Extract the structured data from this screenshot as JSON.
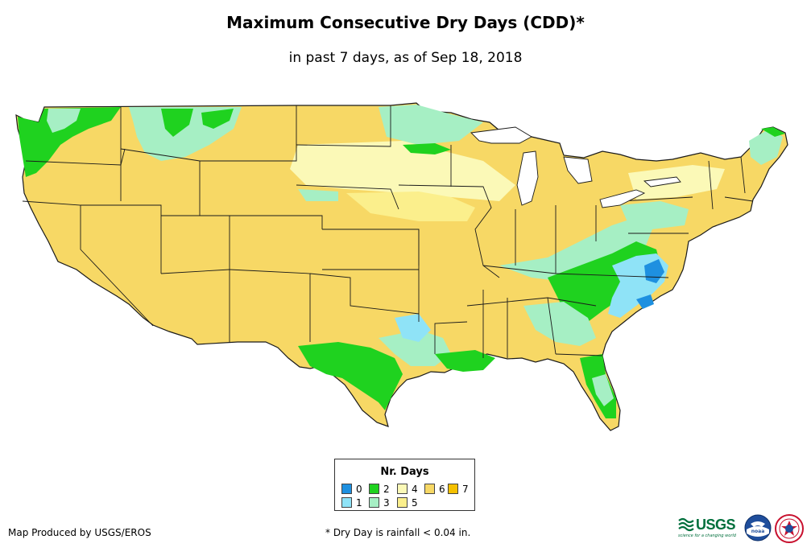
{
  "title": "Maximum Consecutive Dry Days (CDD)*",
  "subtitle": "in past 7 days, as of Sep 18, 2018",
  "legend": {
    "title": "Nr. Days",
    "items": [
      {
        "label": "0",
        "color": "#1e90e0"
      },
      {
        "label": "1",
        "color": "#8fe3f7"
      },
      {
        "label": "2",
        "color": "#1fd21f"
      },
      {
        "label": "3",
        "color": "#a6efc4"
      },
      {
        "label": "4",
        "color": "#fbf9b7"
      },
      {
        "label": "5",
        "color": "#fbef8c"
      },
      {
        "label": "6",
        "color": "#f7d865"
      },
      {
        "label": "7",
        "color": "#f4c000"
      }
    ]
  },
  "footer": {
    "credit": "Map Produced by USGS/EROS",
    "note": "* Dry Day is rainfall < 0.04 in."
  },
  "logos": {
    "usgs": "USGS",
    "usgs_tagline": "science for a changing world",
    "noaa": "noaa"
  },
  "colors": {
    "border": "#1a1a1a",
    "day0": "#1e90e0",
    "day1": "#8fe3f7",
    "day2": "#1fd21f",
    "day3": "#a6efc4",
    "day4": "#fbf9b7",
    "day5": "#fbef8c",
    "day6": "#f7d865",
    "day7": "#f4c000"
  }
}
